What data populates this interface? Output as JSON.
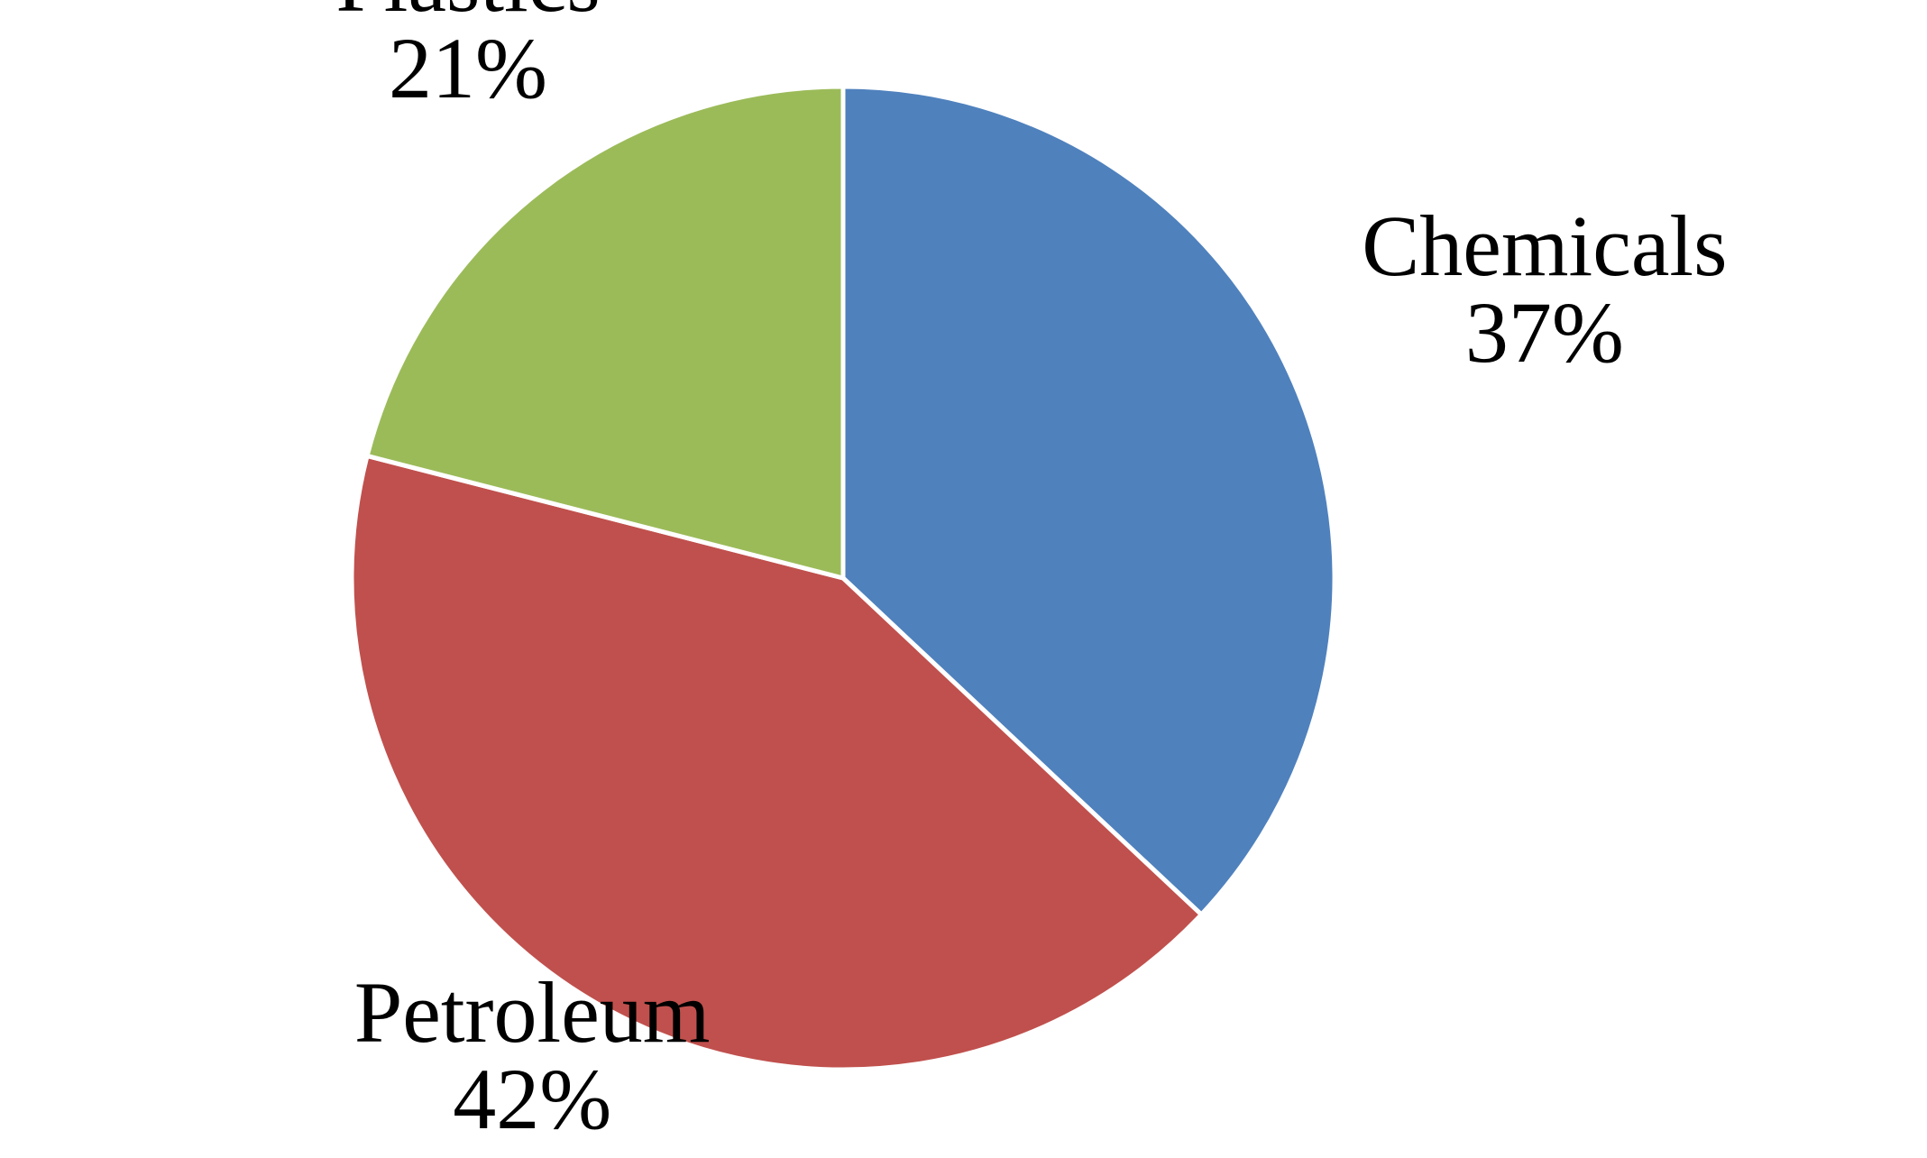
{
  "chart_data": {
    "type": "pie",
    "title": "",
    "start_angle_deg": 0,
    "direction": "clockwise",
    "slices": [
      {
        "label": "Chemicals",
        "value": 37,
        "value_label": "37%",
        "color": "#4F81BD"
      },
      {
        "label": "Petroleum",
        "value": 42,
        "value_label": "42%",
        "color": "#C0504D"
      },
      {
        "label": "Plastics",
        "value": 21,
        "value_label": "21%",
        "color": "#9BBB59"
      }
    ],
    "legend": "none",
    "slice_separator_color": "#FFFFFF"
  }
}
